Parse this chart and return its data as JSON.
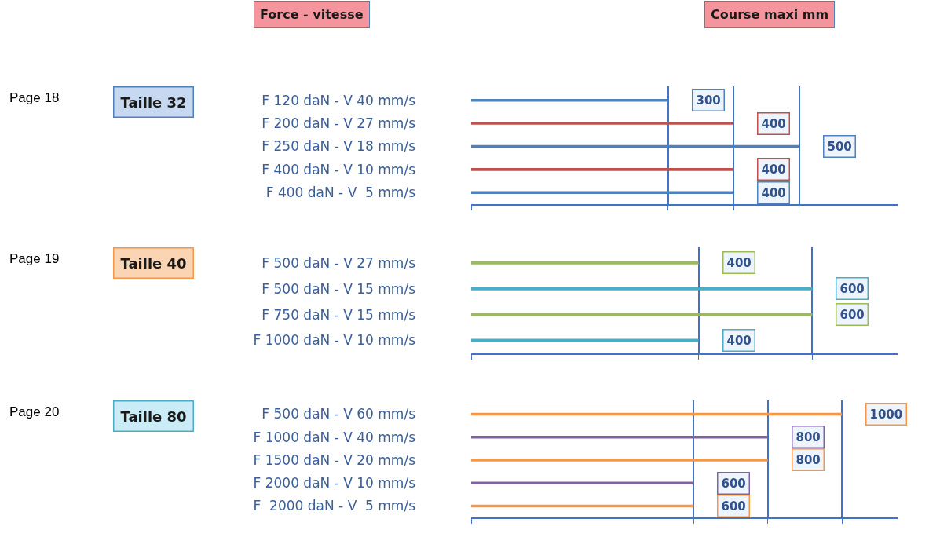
{
  "chart_data": [
    {
      "type": "bar",
      "orientation": "horizontal",
      "title": "Taille 32",
      "annotations": [
        "Page 18"
      ],
      "ylabel": "Force - vitesse",
      "xlabel": "Course maxi mm",
      "categories": [
        "F 120 daN - V 40 mm/s",
        "F 200 daN - V 27 mm/s",
        "F 250 daN - V 18 mm/s",
        "F 400 daN - V 10 mm/s",
        "F 400 daN - V  5 mm/s"
      ],
      "values": [
        300,
        400,
        500,
        400,
        400
      ],
      "colors": [
        "#4f81bd",
        "#c0504d",
        "#4f81bd",
        "#c0504d",
        "#4f81bd"
      ],
      "xlim": [
        0,
        650
      ],
      "xticks": [
        {
          "value": 0,
          "label": null
        },
        {
          "value": 300,
          "label": null
        },
        {
          "value": 400,
          "label": null
        },
        {
          "value": 500,
          "label": null
        }
      ],
      "tick_labels": "y",
      "grid": "x",
      "data_labels": true
    },
    {
      "type": "bar",
      "orientation": "horizontal",
      "title": "Taille 40",
      "annotations": [
        "Page 19"
      ],
      "categories": [
        "F 500 daN - V 27 mm/s",
        "F 500 daN - V 15 mm/s",
        "F 750 daN - V 15 mm/s",
        "F 1000 daN - V 10 mm/s"
      ],
      "values": [
        400,
        600,
        600,
        400
      ],
      "colors": [
        "#9bbb59",
        "#4bacc6",
        "#9bbb59",
        "#4bacc6"
      ],
      "xlim": [
        0,
        750
      ],
      "xticks": [
        {
          "value": 0,
          "label": null
        },
        {
          "value": 400,
          "label": null
        },
        {
          "value": 600,
          "label": null
        }
      ],
      "tick_labels": "y",
      "grid": "x",
      "data_labels": true
    },
    {
      "type": "bar",
      "orientation": "horizontal",
      "title": "Taille 80",
      "annotations": [
        "Page 20"
      ],
      "categories": [
        "F 500 daN - V 60 mm/s",
        "F 1000 daN - V 40 mm/s",
        "F 1500 daN - V 20 mm/s",
        "F 2000 daN - V 10 mm/s",
        "F  2000 daN - V  5 mm/s"
      ],
      "values": [
        1000,
        800,
        800,
        600,
        600
      ],
      "colors": [
        "#f79646",
        "#8064a2",
        "#f79646",
        "#8064a2",
        "#f79646"
      ],
      "xlim": [
        0,
        1150
      ],
      "xticks": [
        {
          "value": 0,
          "label": null
        },
        {
          "value": 600,
          "label": null
        },
        {
          "value": 800,
          "label": null
        },
        {
          "value": 1000,
          "label": null
        }
      ],
      "tick_labels": "y",
      "grid": "x",
      "data_labels": true
    }
  ]
}
